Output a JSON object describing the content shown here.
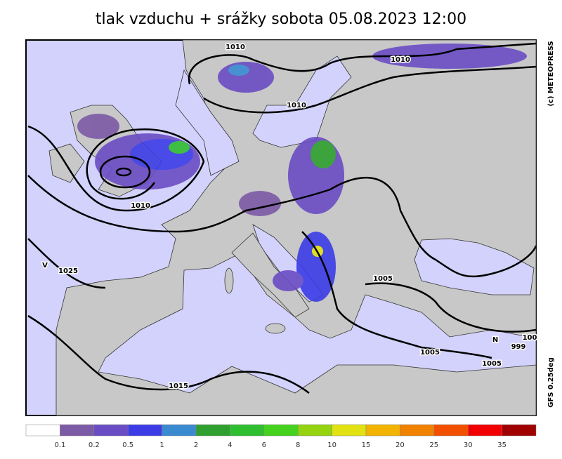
{
  "header": {
    "title": "tlak vzduchu + srážky  sobota 05.08.2023 12:00"
  },
  "side": {
    "copyright": "(c) METEOPRESS",
    "model": "GFS  0.25deg"
  },
  "isobar_labels": [
    "1010",
    "1010",
    "1010",
    "1010",
    "1005",
    "1005",
    "1005",
    "1015",
    "100"
  ],
  "pressure_centers": [
    {
      "letter": "V",
      "value": "1025"
    },
    {
      "letter": "N",
      "value": "999"
    }
  ],
  "legend": {
    "colors": [
      "#ffffff",
      "#7c5aa6",
      "#6a4cc4",
      "#3c3ce6",
      "#3a8ad2",
      "#2fa02f",
      "#2fbe2f",
      "#45d21f",
      "#94d310",
      "#e2e212",
      "#f2b400",
      "#f08200",
      "#f25000",
      "#f20000",
      "#a00000"
    ],
    "labels": [
      "0.1",
      "0.2",
      "0.5",
      "1",
      "2",
      "4",
      "6",
      "8",
      "10",
      "15",
      "20",
      "25",
      "30",
      "35"
    ]
  }
}
